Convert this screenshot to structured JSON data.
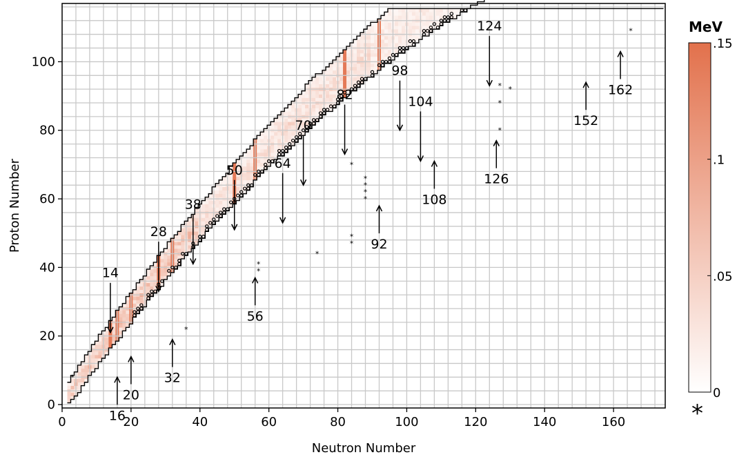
{
  "chart_data": {
    "type": "heatmap",
    "xlabel": "Neutron Number",
    "ylabel": "Proton Number",
    "xlim": [
      0,
      175
    ],
    "ylim": [
      -1,
      117
    ],
    "xticks": [
      0,
      20,
      40,
      60,
      80,
      100,
      120,
      140,
      160
    ],
    "yticks": [
      0,
      20,
      40,
      60,
      80,
      100
    ],
    "grid": true,
    "colorbar": {
      "title": "MeV",
      "range": [
        0,
        0.15
      ],
      "ticks": [
        {
          "value": 0,
          "label": "0"
        },
        {
          "value": 0.05,
          "label": ".05"
        },
        {
          "value": 0.1,
          "label": ".1"
        },
        {
          "value": 0.15,
          "label": ".15"
        }
      ],
      "low_color": "#ffffff",
      "high_color": "#e2714c",
      "special_marker": "*"
    },
    "magic_lines": {
      "neutron": [
        14,
        16,
        20,
        28,
        32,
        50,
        56,
        82,
        92,
        126,
        152,
        162
      ],
      "proton": [
        14,
        16,
        20,
        28,
        32,
        50,
        56,
        82,
        92,
        126,
        152,
        162
      ],
      "value": 0.14
    },
    "annotations": [
      {
        "label": "14",
        "x": 14,
        "y": 21,
        "direction": "down"
      },
      {
        "label": "16",
        "x": 16,
        "y": 8,
        "direction": "up"
      },
      {
        "label": "20",
        "x": 20,
        "y": 14,
        "direction": "up"
      },
      {
        "label": "28",
        "x": 28,
        "y": 33,
        "direction": "down"
      },
      {
        "label": "32",
        "x": 32,
        "y": 19,
        "direction": "up"
      },
      {
        "label": "38",
        "x": 38,
        "y": 41,
        "direction": "down"
      },
      {
        "label": "50",
        "x": 50,
        "y": 51,
        "direction": "down"
      },
      {
        "label": "56",
        "x": 56,
        "y": 37,
        "direction": "up"
      },
      {
        "label": "64",
        "x": 64,
        "y": 53,
        "direction": "down"
      },
      {
        "label": "70",
        "x": 70,
        "y": 64,
        "direction": "down"
      },
      {
        "label": "82",
        "x": 82,
        "y": 73,
        "direction": "down"
      },
      {
        "label": "92",
        "x": 92,
        "y": 58,
        "direction": "up"
      },
      {
        "label": "98",
        "x": 98,
        "y": 80,
        "direction": "down"
      },
      {
        "label": "104",
        "x": 104,
        "y": 71,
        "direction": "down"
      },
      {
        "label": "108",
        "x": 108,
        "y": 71,
        "direction": "up"
      },
      {
        "label": "124",
        "x": 124,
        "y": 93,
        "direction": "down"
      },
      {
        "label": "126",
        "x": 126,
        "y": 77,
        "direction": "up"
      },
      {
        "label": "152",
        "x": 152,
        "y": 94,
        "direction": "up"
      },
      {
        "label": "162",
        "x": 162,
        "y": 103,
        "direction": "up"
      }
    ]
  }
}
